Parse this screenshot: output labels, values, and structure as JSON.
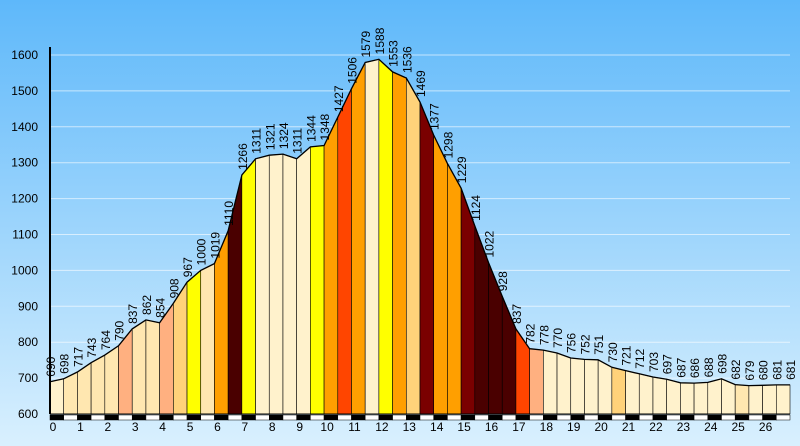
{
  "chart_data": {
    "type": "area",
    "title": "",
    "xlabel": "",
    "ylabel": "",
    "xlim": [
      0,
      27
    ],
    "ylim": [
      600,
      1600
    ],
    "grid": true,
    "y_ticks": [
      600,
      700,
      800,
      900,
      1000,
      1100,
      1200,
      1300,
      1400,
      1500,
      1600
    ],
    "x_ticks": [
      0,
      1,
      2,
      3,
      4,
      5,
      6,
      7,
      8,
      9,
      10,
      11,
      12,
      13,
      14,
      15,
      16,
      17,
      18,
      19,
      20,
      21,
      22,
      23,
      24,
      25,
      26
    ],
    "colors": {
      "background_top": "#5eb8fa",
      "background_bottom": "#d9f0fe",
      "bands": [
        "#fff2cc",
        "#ffe7b0",
        "#ffd27a",
        "#ffb080",
        "#ffff00",
        "#ff9f00",
        "#ff6a00",
        "#ff4500",
        "#7a0000",
        "#4a0000"
      ]
    },
    "x": [
      0,
      0.5,
      1,
      1.5,
      2,
      2.5,
      3,
      3.5,
      4,
      4.5,
      5,
      5.5,
      6,
      6.5,
      7,
      7.5,
      8,
      8.5,
      9,
      9.5,
      10,
      10.5,
      11,
      11.5,
      12,
      12.5,
      13,
      13.5,
      14,
      14.5,
      15,
      15.5,
      16,
      16.5,
      17,
      17.5,
      18,
      18.5,
      19,
      19.5,
      20,
      20.5,
      21,
      21.5,
      22,
      22.5,
      23,
      23.5,
      24,
      24.5,
      25,
      25.5,
      26,
      26.5,
      27
    ],
    "values": [
      690,
      698,
      717,
      743,
      764,
      790,
      837,
      862,
      854,
      908,
      967,
      1000,
      1019,
      1110,
      1266,
      1311,
      1321,
      1324,
      1311,
      1344,
      1348,
      1427,
      1506,
      1579,
      1588,
      1553,
      1536,
      1469,
      1377,
      1298,
      1229,
      1124,
      1022,
      928,
      837,
      782,
      778,
      770,
      756,
      752,
      751,
      730,
      721,
      712,
      703,
      697,
      687,
      686,
      688,
      698,
      682,
      679,
      680,
      681,
      681
    ],
    "labels": [
      "690",
      "698",
      "717",
      "743",
      "764",
      "790",
      "837",
      "862",
      "854",
      "908",
      "967",
      "1000",
      "1019",
      "1110",
      "1266",
      "1311",
      "1321",
      "1324",
      "1311",
      "1344",
      "1348",
      "1427",
      "1506",
      "1579",
      "1588",
      "1553",
      "1536",
      "1469",
      "1377",
      "1298",
      "1229",
      "1124",
      "1022",
      "928",
      "837",
      "782",
      "778",
      "770",
      "756",
      "752",
      "751",
      "730",
      "721",
      "712",
      "703",
      "697",
      "687",
      "686",
      "688",
      "698",
      "682",
      "679",
      "680",
      "681",
      "681"
    ],
    "band_colors": [
      0,
      1,
      1,
      1,
      1,
      3,
      1,
      1,
      3,
      2,
      4,
      1,
      5,
      9,
      4,
      0,
      0,
      0,
      0,
      4,
      5,
      7,
      5,
      0,
      4,
      5,
      2,
      8,
      5,
      5,
      8,
      9,
      9,
      9,
      7,
      3,
      0,
      0,
      0,
      0,
      0,
      2,
      0,
      0,
      0,
      0,
      0,
      0,
      0,
      0,
      1,
      0,
      0,
      0
    ]
  }
}
